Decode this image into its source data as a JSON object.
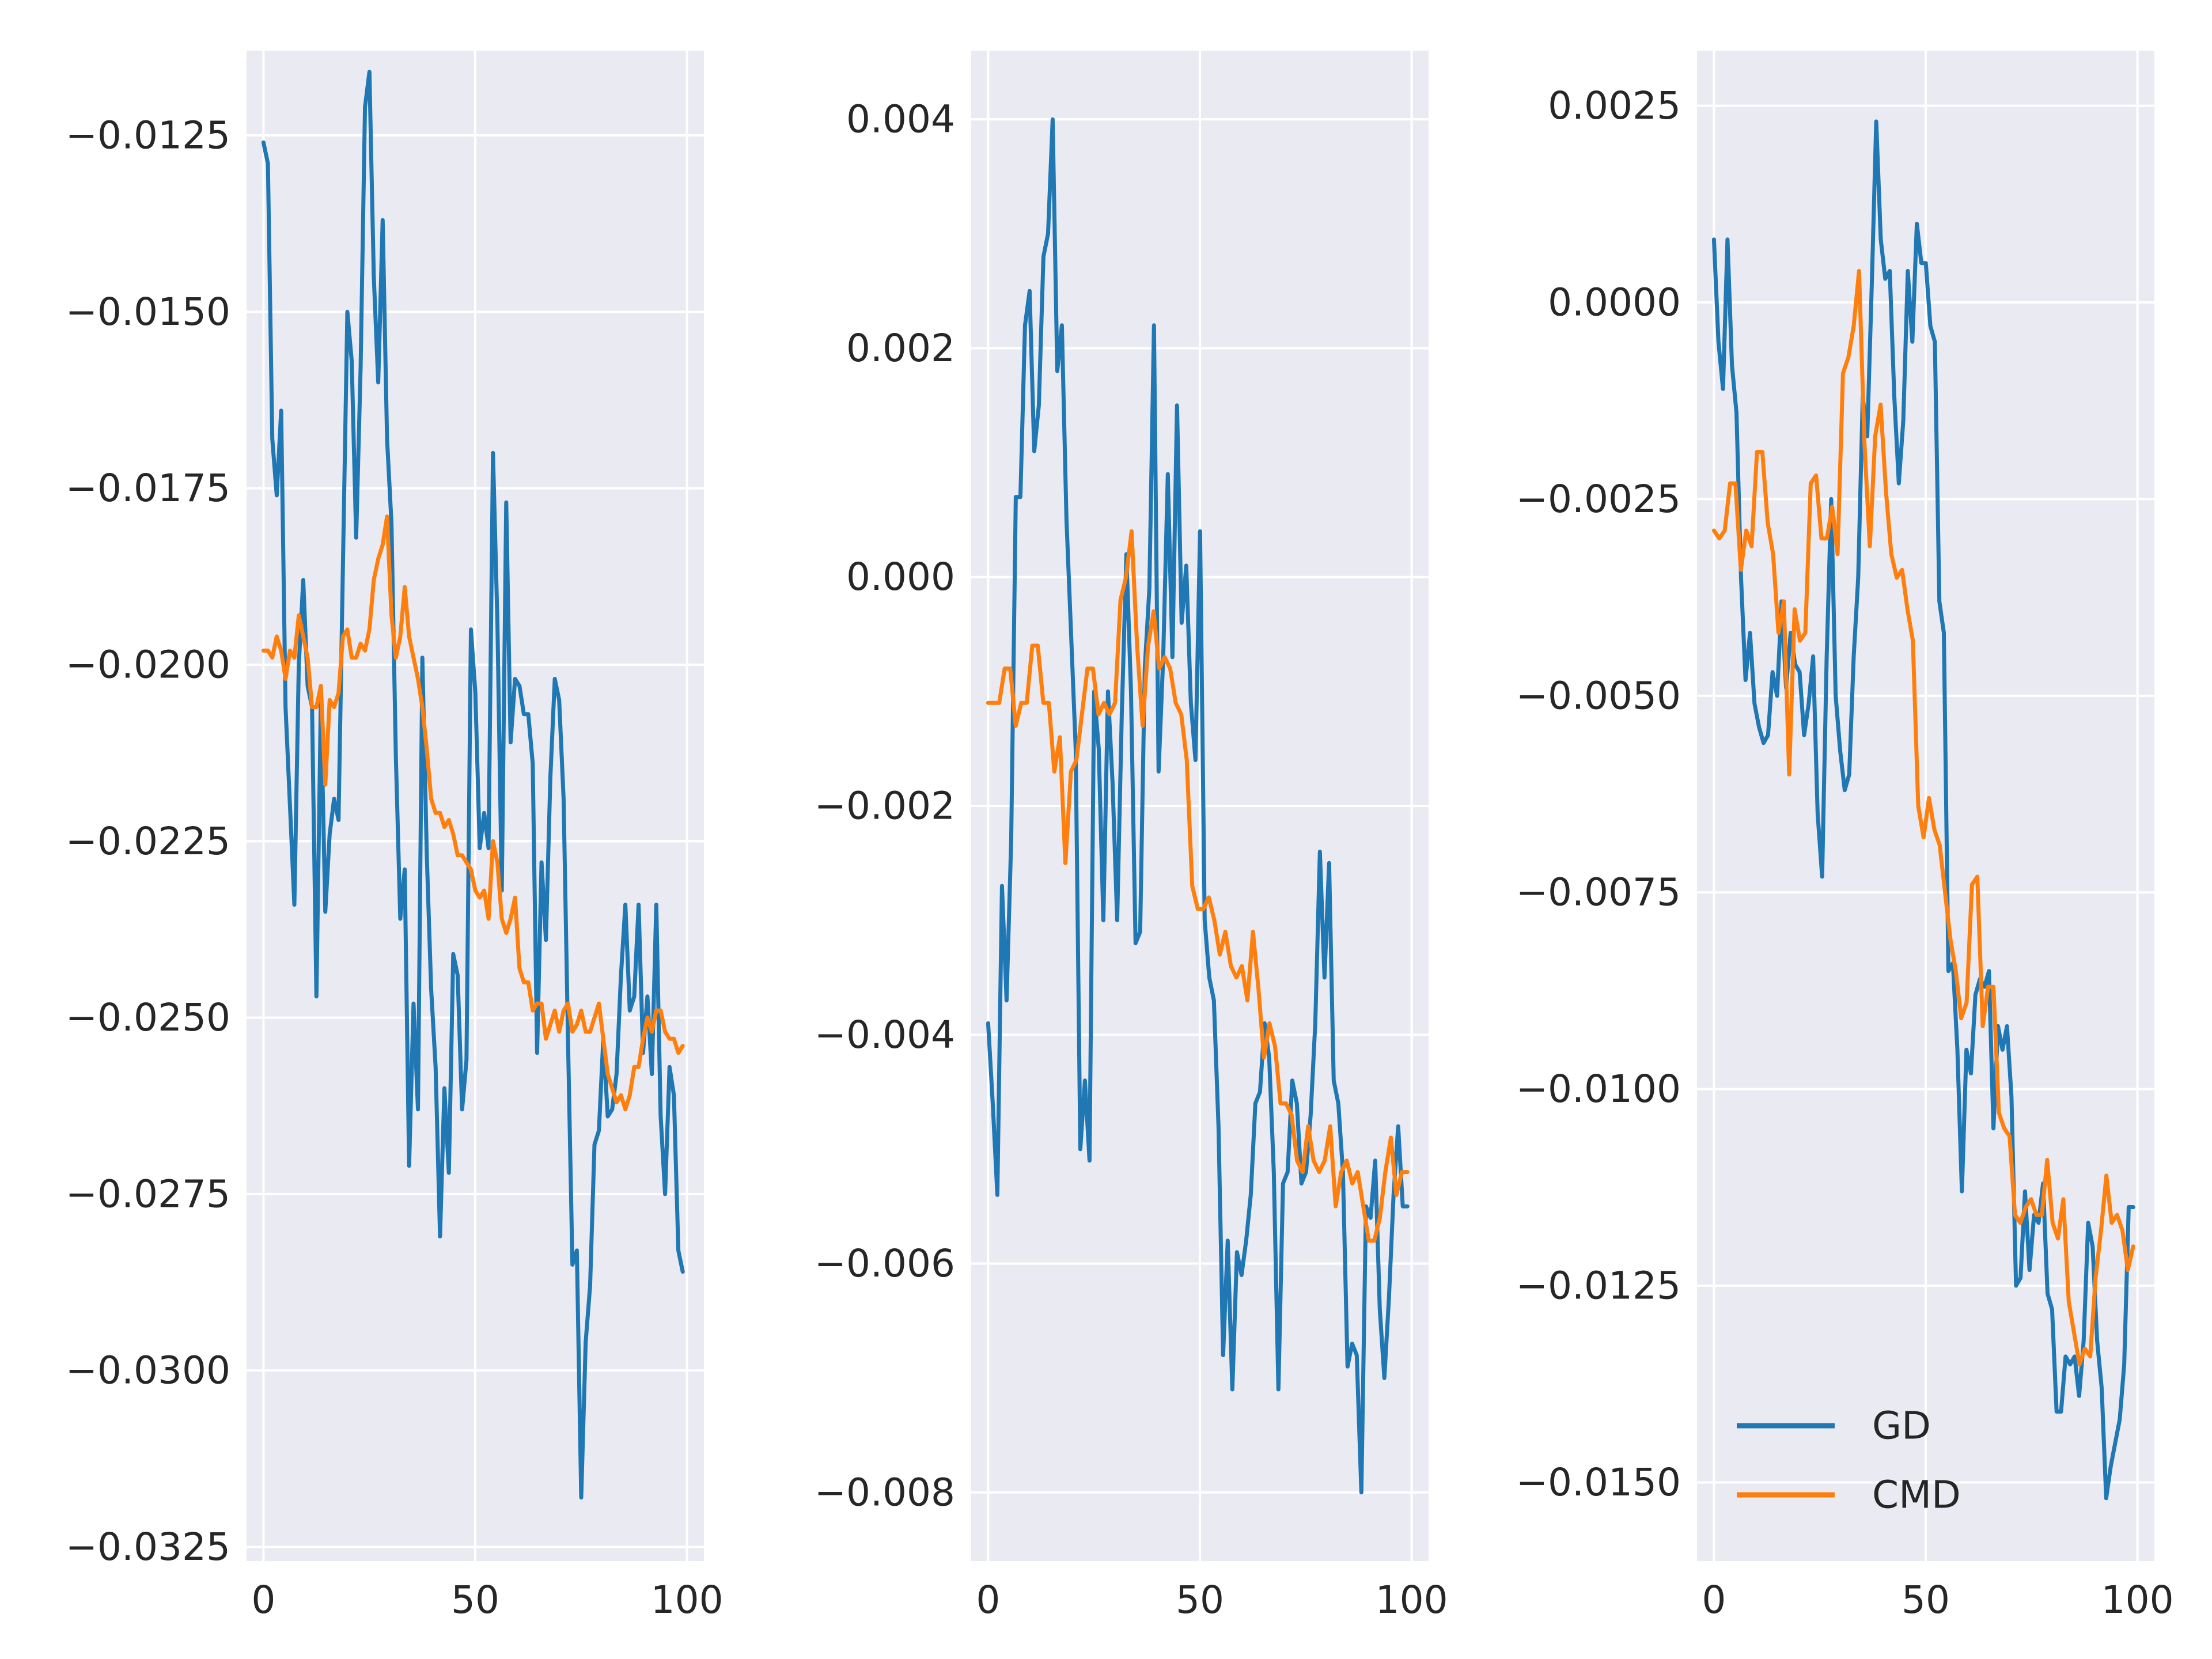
{
  "figure": {
    "style": "seaborn-darkgrid",
    "layout": "1 row x 3 columns"
  },
  "colors": {
    "background": "#EAEAF2",
    "grid": "#FFFFFF",
    "gd": "#1F77B4",
    "cmd": "#FF7F0E",
    "text": "#262626"
  },
  "legend": {
    "location": "lower-left",
    "entries": [
      "GD",
      "CMD"
    ]
  },
  "chart_data": [
    {
      "type": "line",
      "title": "",
      "xlabel": "",
      "ylabel": "",
      "xlim": [
        -4,
        104
      ],
      "ylim": [
        -0.0327,
        -0.0113
      ],
      "xticks": [
        0,
        50,
        100
      ],
      "xtick_labels": [
        "0",
        "50",
        "100"
      ],
      "yticks": [
        -0.0125,
        -0.015,
        -0.0175,
        -0.02,
        -0.0225,
        -0.025,
        -0.0275,
        -0.03,
        -0.0325
      ],
      "ytick_labels": [
        "−0.0125",
        "−0.0150",
        "−0.0175",
        "−0.0200",
        "−0.0225",
        "−0.0250",
        "−0.0275",
        "−0.0300",
        "−0.0325"
      ],
      "grid": true,
      "series": [
        {
          "name": "GD",
          "values": [
            -0.0126,
            -0.0129,
            -0.0168,
            -0.0176,
            -0.0164,
            -0.0206,
            -0.022,
            -0.0234,
            -0.02,
            -0.0188,
            -0.0203,
            -0.0206,
            -0.0247,
            -0.0205,
            -0.0235,
            -0.0224,
            -0.0219,
            -0.0222,
            -0.0186,
            -0.015,
            -0.0157,
            -0.0182,
            -0.0158,
            -0.0121,
            -0.0116,
            -0.0145,
            -0.016,
            -0.0137,
            -0.0168,
            -0.018,
            -0.0213,
            -0.0236,
            -0.0229,
            -0.0271,
            -0.0248,
            -0.0263,
            -0.0199,
            -0.0227,
            -0.0246,
            -0.0257,
            -0.0281,
            -0.026,
            -0.0272,
            -0.0241,
            -0.0244,
            -0.0263,
            -0.0256,
            -0.0195,
            -0.0204,
            -0.0226,
            -0.0221,
            -0.0226,
            -0.017,
            -0.0194,
            -0.0232,
            -0.0177,
            -0.0211,
            -0.0202,
            -0.0203,
            -0.0207,
            -0.0207,
            -0.0214,
            -0.0255,
            -0.0228,
            -0.0239,
            -0.0216,
            -0.0202,
            -0.0205,
            -0.0219,
            -0.0253,
            -0.0285,
            -0.0283,
            -0.0318,
            -0.0296,
            -0.0288,
            -0.0268,
            -0.0266,
            -0.0253,
            -0.0264,
            -0.0263,
            -0.0258,
            -0.0244,
            -0.0234,
            -0.0249,
            -0.0247,
            -0.0234,
            -0.0255,
            -0.0247,
            -0.0258,
            -0.0234,
            -0.0264,
            -0.0275,
            -0.0257,
            -0.0261,
            -0.0283,
            -0.0286
          ]
        },
        {
          "name": "CMD",
          "values": [
            -0.0198,
            -0.0198,
            -0.0199,
            -0.0196,
            -0.0198,
            -0.0202,
            -0.0198,
            -0.0199,
            -0.0193,
            -0.0196,
            -0.0199,
            -0.0206,
            -0.0206,
            -0.0203,
            -0.0217,
            -0.0205,
            -0.0206,
            -0.0204,
            -0.0196,
            -0.0195,
            -0.0199,
            -0.0199,
            -0.0197,
            -0.0198,
            -0.0195,
            -0.0188,
            -0.0185,
            -0.0183,
            -0.0179,
            -0.0193,
            -0.0199,
            -0.0196,
            -0.0189,
            -0.0196,
            -0.0199,
            -0.0202,
            -0.0206,
            -0.0212,
            -0.0219,
            -0.0221,
            -0.0221,
            -0.0223,
            -0.0222,
            -0.0224,
            -0.0227,
            -0.0227,
            -0.0228,
            -0.0229,
            -0.0232,
            -0.0233,
            -0.0232,
            -0.0236,
            -0.0225,
            -0.0228,
            -0.0236,
            -0.0238,
            -0.0236,
            -0.0233,
            -0.0243,
            -0.0245,
            -0.0245,
            -0.0249,
            -0.0248,
            -0.0248,
            -0.0253,
            -0.0251,
            -0.0249,
            -0.0252,
            -0.0249,
            -0.0248,
            -0.0252,
            -0.0251,
            -0.0249,
            -0.0252,
            -0.0252,
            -0.025,
            -0.0248,
            -0.0253,
            -0.0258,
            -0.026,
            -0.0262,
            -0.0261,
            -0.0263,
            -0.0261,
            -0.0257,
            -0.0257,
            -0.0253,
            -0.025,
            -0.0252,
            -0.0249,
            -0.0249,
            -0.0252,
            -0.0253,
            -0.0253,
            -0.0255,
            -0.0254
          ]
        }
      ]
    },
    {
      "type": "line",
      "title": "",
      "xlabel": "",
      "ylabel": "",
      "xlim": [
        -4,
        104
      ],
      "ylim": [
        -0.0086,
        0.0046
      ],
      "xticks": [
        0,
        50,
        100
      ],
      "xtick_labels": [
        "0",
        "50",
        "100"
      ],
      "yticks": [
        0.004,
        0.002,
        0.0,
        -0.002,
        -0.004,
        -0.006,
        -0.008
      ],
      "ytick_labels": [
        "0.004",
        "0.002",
        "0.000",
        "−0.002",
        "−0.004",
        "−0.006",
        "−0.008"
      ],
      "grid": true,
      "series": [
        {
          "name": "GD",
          "values": [
            -0.0039,
            -0.0046,
            -0.0054,
            -0.0027,
            -0.0037,
            -0.0023,
            0.0007,
            0.0007,
            0.0022,
            0.0025,
            0.0011,
            0.0015,
            0.0028,
            0.003,
            0.004,
            0.0018,
            0.0022,
            0.0005,
            -0.0005,
            -0.0015,
            -0.005,
            -0.0044,
            -0.0051,
            -0.001,
            -0.0015,
            -0.003,
            -0.001,
            -0.0018,
            -0.003,
            -0.0012,
            0.0002,
            -0.001,
            -0.0032,
            -0.0031,
            -0.0008,
            -0.0001,
            0.0022,
            -0.0017,
            -0.0007,
            0.0009,
            -0.0007,
            0.0015,
            -0.0004,
            0.0001,
            -0.0011,
            -0.0016,
            0.0004,
            -0.003,
            -0.0035,
            -0.0037,
            -0.0048,
            -0.0068,
            -0.0058,
            -0.0071,
            -0.0059,
            -0.0061,
            -0.0058,
            -0.0054,
            -0.0046,
            -0.0045,
            -0.0039,
            -0.0042,
            -0.0052,
            -0.0071,
            -0.0053,
            -0.0052,
            -0.0044,
            -0.0046,
            -0.0053,
            -0.0052,
            -0.0047,
            -0.0039,
            -0.0024,
            -0.0035,
            -0.0025,
            -0.0044,
            -0.0046,
            -0.0052,
            -0.0069,
            -0.0067,
            -0.0068,
            -0.008,
            -0.0055,
            -0.0056,
            -0.0051,
            -0.0064,
            -0.007,
            -0.0063,
            -0.0054,
            -0.0048,
            -0.0055,
            -0.0055
          ]
        },
        {
          "name": "CMD",
          "values": [
            -0.0011,
            -0.0011,
            -0.0011,
            -0.0008,
            -0.0008,
            -0.0013,
            -0.0011,
            -0.0011,
            -0.0006,
            -0.0006,
            -0.0011,
            -0.0011,
            -0.0017,
            -0.0014,
            -0.0025,
            -0.0017,
            -0.0016,
            -0.0012,
            -0.0008,
            -0.0008,
            -0.0012,
            -0.0011,
            -0.0012,
            -0.0011,
            -0.0002,
            0.0,
            0.0004,
            -0.0006,
            -0.0013,
            -0.0006,
            -0.0003,
            -0.0008,
            -0.0007,
            -0.0008,
            -0.0011,
            -0.0012,
            -0.0016,
            -0.0027,
            -0.0029,
            -0.0029,
            -0.0028,
            -0.003,
            -0.0033,
            -0.0031,
            -0.0034,
            -0.0035,
            -0.0034,
            -0.0037,
            -0.0031,
            -0.0036,
            -0.0042,
            -0.0039,
            -0.0041,
            -0.0046,
            -0.0046,
            -0.0047,
            -0.0051,
            -0.0052,
            -0.0048,
            -0.0051,
            -0.0052,
            -0.0051,
            -0.0048,
            -0.0055,
            -0.0052,
            -0.0051,
            -0.0053,
            -0.0052,
            -0.0055,
            -0.0058,
            -0.0058,
            -0.0056,
            -0.0052,
            -0.0049,
            -0.0054,
            -0.0052,
            -0.0052
          ]
        }
      ]
    },
    {
      "type": "line",
      "title": "",
      "xlabel": "",
      "ylabel": "",
      "xlim": [
        -4,
        104
      ],
      "ylim": [
        -0.016,
        0.0032
      ],
      "xticks": [
        0,
        50,
        100
      ],
      "xtick_labels": [
        "0",
        "50",
        "100"
      ],
      "yticks": [
        0.0025,
        0.0,
        -0.0025,
        -0.005,
        -0.0075,
        -0.01,
        -0.0125,
        -0.015
      ],
      "ytick_labels": [
        "0.0025",
        "0.0000",
        "−0.0025",
        "−0.0050",
        "−0.0075",
        "−0.0100",
        "−0.0125",
        "−0.0150"
      ],
      "grid": true,
      "series": [
        {
          "name": "GD",
          "values": [
            0.0008,
            -0.0005,
            -0.0011,
            0.0008,
            -0.0008,
            -0.0014,
            -0.0035,
            -0.0048,
            -0.0042,
            -0.0051,
            -0.0054,
            -0.0056,
            -0.0055,
            -0.0047,
            -0.005,
            -0.0038,
            -0.0049,
            -0.0042,
            -0.0046,
            -0.0047,
            -0.0055,
            -0.0051,
            -0.0045,
            -0.0065,
            -0.0073,
            -0.0045,
            -0.0025,
            -0.005,
            -0.0057,
            -0.0062,
            -0.006,
            -0.0045,
            -0.0035,
            -0.0012,
            -0.0017,
            0.0002,
            0.0023,
            0.0008,
            0.0003,
            0.0004,
            -0.0012,
            -0.0023,
            -0.0015,
            0.0004,
            -0.0005,
            0.001,
            0.0005,
            0.0005,
            -0.0003,
            -0.0005,
            -0.0038,
            -0.0042,
            -0.0085,
            -0.0084,
            -0.0095,
            -0.0113,
            -0.0095,
            -0.0098,
            -0.0088,
            -0.0086,
            -0.0087,
            -0.0085,
            -0.0105,
            -0.0092,
            -0.0095,
            -0.0092,
            -0.0101,
            -0.0125,
            -0.0124,
            -0.0113,
            -0.0123,
            -0.0116,
            -0.0117,
            -0.0112,
            -0.0126,
            -0.0128,
            -0.0141,
            -0.0141,
            -0.0134,
            -0.0135,
            -0.0134,
            -0.0139,
            -0.0132,
            -0.0117,
            -0.012,
            -0.0132,
            -0.0138,
            -0.0152,
            -0.0148,
            -0.0145,
            -0.0142,
            -0.0135,
            -0.0115,
            -0.0115
          ]
        },
        {
          "name": "CMD",
          "values": [
            -0.0029,
            -0.003,
            -0.0029,
            -0.0023,
            -0.0023,
            -0.0034,
            -0.0029,
            -0.0031,
            -0.0019,
            -0.0019,
            -0.0028,
            -0.0032,
            -0.0042,
            -0.0038,
            -0.006,
            -0.0039,
            -0.0043,
            -0.0042,
            -0.0023,
            -0.0022,
            -0.003,
            -0.003,
            -0.0026,
            -0.0032,
            -0.0009,
            -0.0007,
            -0.0003,
            0.0004,
            -0.0018,
            -0.0031,
            -0.0017,
            -0.0013,
            -0.0024,
            -0.0032,
            -0.0035,
            -0.0034,
            -0.0039,
            -0.0043,
            -0.0064,
            -0.0068,
            -0.0063,
            -0.0067,
            -0.0069,
            -0.0075,
            -0.0081,
            -0.0085,
            -0.0091,
            -0.0089,
            -0.0074,
            -0.0073,
            -0.0092,
            -0.0087,
            -0.0087,
            -0.0103,
            -0.0105,
            -0.0106,
            -0.0116,
            -0.0117,
            -0.0115,
            -0.0114,
            -0.0116,
            -0.0116,
            -0.0109,
            -0.0117,
            -0.0119,
            -0.0114,
            -0.0127,
            -0.0131,
            -0.0135,
            -0.0133,
            -0.0134,
            -0.0124,
            -0.0118,
            -0.0111,
            -0.0117,
            -0.0116,
            -0.0118,
            -0.0123,
            -0.012
          ]
        }
      ]
    }
  ]
}
